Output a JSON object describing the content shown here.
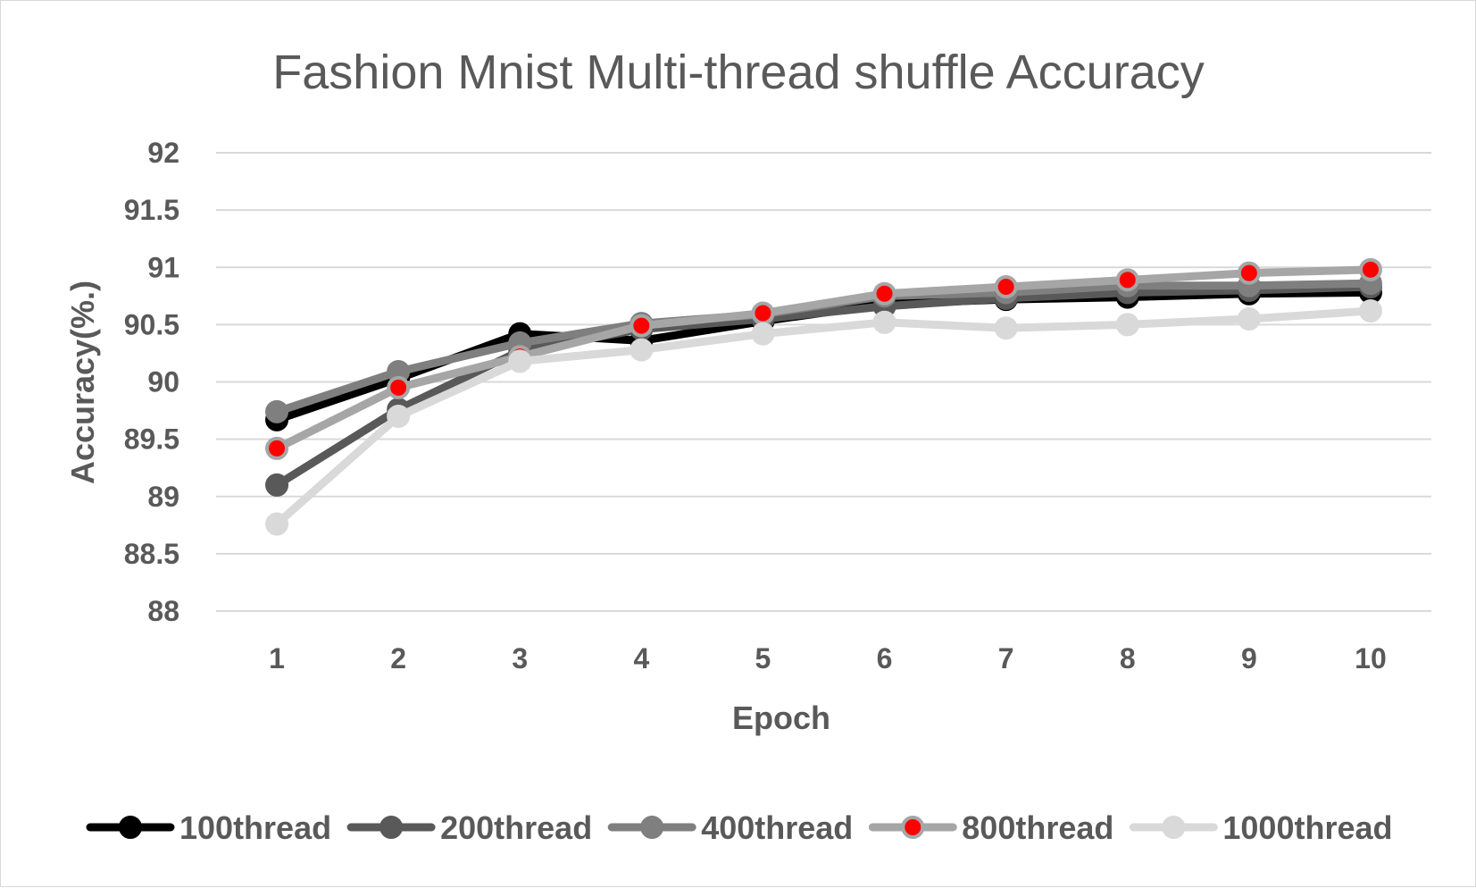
{
  "chart_data": {
    "type": "line",
    "title": "Fashion Mnist Multi-thread shuffle Accuracy",
    "xlabel": "Epoch",
    "ylabel": "Accuracy(%.)",
    "categories": [
      "1",
      "2",
      "3",
      "4",
      "5",
      "6",
      "7",
      "8",
      "9",
      "10"
    ],
    "ylim": [
      88,
      92
    ],
    "yticks": [
      "88",
      "88.5",
      "89",
      "89.5",
      "90",
      "90.5",
      "91",
      "91.5",
      "92"
    ],
    "grid": true,
    "legend_position": "bottom",
    "series": [
      {
        "name": "100thread",
        "color": "#000000",
        "marker_fill": "#000000",
        "values": [
          89.67,
          90.03,
          90.42,
          90.36,
          90.53,
          90.68,
          90.72,
          90.74,
          90.77,
          90.78
        ]
      },
      {
        "name": "200thread",
        "color": "#595959",
        "marker_fill": "#595959",
        "values": [
          89.1,
          89.76,
          90.27,
          90.46,
          90.55,
          90.66,
          90.73,
          90.78,
          90.8,
          90.83
        ]
      },
      {
        "name": "400thread",
        "color": "#7f7f7f",
        "marker_fill": "#7f7f7f",
        "values": [
          89.74,
          90.09,
          90.34,
          90.51,
          90.59,
          90.75,
          90.78,
          90.84,
          90.84,
          90.86
        ]
      },
      {
        "name": "800thread",
        "color": "#a6a6a6",
        "marker_fill": "#ff0000",
        "values": [
          89.42,
          89.95,
          90.22,
          90.49,
          90.6,
          90.77,
          90.83,
          90.89,
          90.95,
          90.98
        ]
      },
      {
        "name": "1000thread",
        "color": "#d9d9d9",
        "marker_fill": "#d9d9d9",
        "values": [
          88.76,
          89.7,
          90.18,
          90.28,
          90.42,
          90.52,
          90.47,
          90.5,
          90.55,
          90.62
        ]
      }
    ]
  }
}
